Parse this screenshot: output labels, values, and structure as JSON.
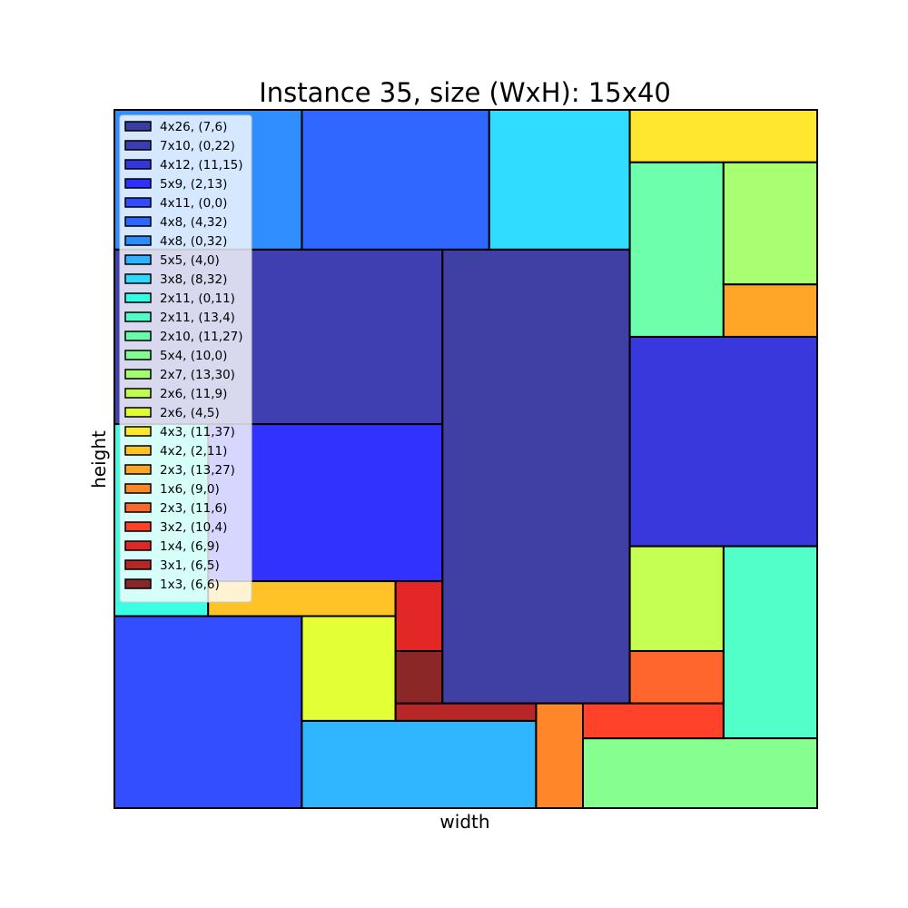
{
  "chart_data": {
    "type": "rectangle-packing",
    "title": "Instance 35, size (WxH): 15x40",
    "xlabel": "width",
    "ylabel": "height",
    "container": {
      "width": 15,
      "height": 40
    },
    "legend_position": "upper-left",
    "rectangles": [
      {
        "label": "4x26, (7,6)",
        "w": 4,
        "h": 26,
        "x": 7,
        "y": 6,
        "color": "#2a2a9a"
      },
      {
        "label": "7x10, (0,22)",
        "w": 7,
        "h": 10,
        "x": 0,
        "y": 22,
        "color": "#2a2aa8"
      },
      {
        "label": "4x12, (11,15)",
        "w": 4,
        "h": 12,
        "x": 11,
        "y": 15,
        "color": "#2222d9"
      },
      {
        "label": "5x9, (2,13)",
        "w": 5,
        "h": 9,
        "x": 2,
        "y": 13,
        "color": "#1c1cff"
      },
      {
        "label": "4x11, (0,0)",
        "w": 4,
        "h": 11,
        "x": 0,
        "y": 0,
        "color": "#1d3bff"
      },
      {
        "label": "4x8, (4,32)",
        "w": 4,
        "h": 8,
        "x": 4,
        "y": 32,
        "color": "#1a57ff"
      },
      {
        "label": "4x8, (0,32)",
        "w": 4,
        "h": 8,
        "x": 0,
        "y": 32,
        "color": "#1a82ff"
      },
      {
        "label": "5x5, (4,0)",
        "w": 5,
        "h": 5,
        "x": 4,
        "y": 0,
        "color": "#1aaeff"
      },
      {
        "label": "3x8, (8,32)",
        "w": 3,
        "h": 8,
        "x": 8,
        "y": 32,
        "color": "#1ad8ff"
      },
      {
        "label": "2x11, (0,11)",
        "w": 2,
        "h": 11,
        "x": 0,
        "y": 11,
        "color": "#25ffe0"
      },
      {
        "label": "2x11, (13,4)",
        "w": 2,
        "h": 11,
        "x": 13,
        "y": 4,
        "color": "#40ffc2"
      },
      {
        "label": "2x10, (11,27)",
        "w": 2,
        "h": 10,
        "x": 11,
        "y": 27,
        "color": "#5dffa2"
      },
      {
        "label": "5x4, (10,0)",
        "w": 5,
        "h": 4,
        "x": 10,
        "y": 0,
        "color": "#7aff84"
      },
      {
        "label": "2x7, (13,30)",
        "w": 2,
        "h": 7,
        "x": 13,
        "y": 30,
        "color": "#9dff62"
      },
      {
        "label": "2x6, (11,9)",
        "w": 2,
        "h": 6,
        "x": 11,
        "y": 9,
        "color": "#bfff3f"
      },
      {
        "label": "2x6, (4,5)",
        "w": 2,
        "h": 6,
        "x": 4,
        "y": 5,
        "color": "#e0ff20"
      },
      {
        "label": "4x3, (11,37)",
        "w": 4,
        "h": 3,
        "x": 11,
        "y": 37,
        "color": "#ffe41a"
      },
      {
        "label": "4x2, (2,11)",
        "w": 4,
        "h": 2,
        "x": 2,
        "y": 11,
        "color": "#ffbd10"
      },
      {
        "label": "2x3, (13,27)",
        "w": 2,
        "h": 3,
        "x": 13,
        "y": 27,
        "color": "#ff9b10"
      },
      {
        "label": "1x6, (9,0)",
        "w": 1,
        "h": 6,
        "x": 9,
        "y": 0,
        "color": "#ff7a12"
      },
      {
        "label": "2x3, (11,6)",
        "w": 2,
        "h": 3,
        "x": 11,
        "y": 6,
        "color": "#ff5516"
      },
      {
        "label": "3x2, (10,4)",
        "w": 3,
        "h": 2,
        "x": 10,
        "y": 4,
        "color": "#ff2e12"
      },
      {
        "label": "1x4, (6,9)",
        "w": 1,
        "h": 4,
        "x": 6,
        "y": 9,
        "color": "#e01010"
      },
      {
        "label": "3x1, (6,5)",
        "w": 3,
        "h": 1,
        "x": 6,
        "y": 5,
        "color": "#b01010"
      },
      {
        "label": "1x3, (6,6)",
        "w": 1,
        "h": 3,
        "x": 6,
        "y": 6,
        "color": "#801010"
      }
    ]
  }
}
